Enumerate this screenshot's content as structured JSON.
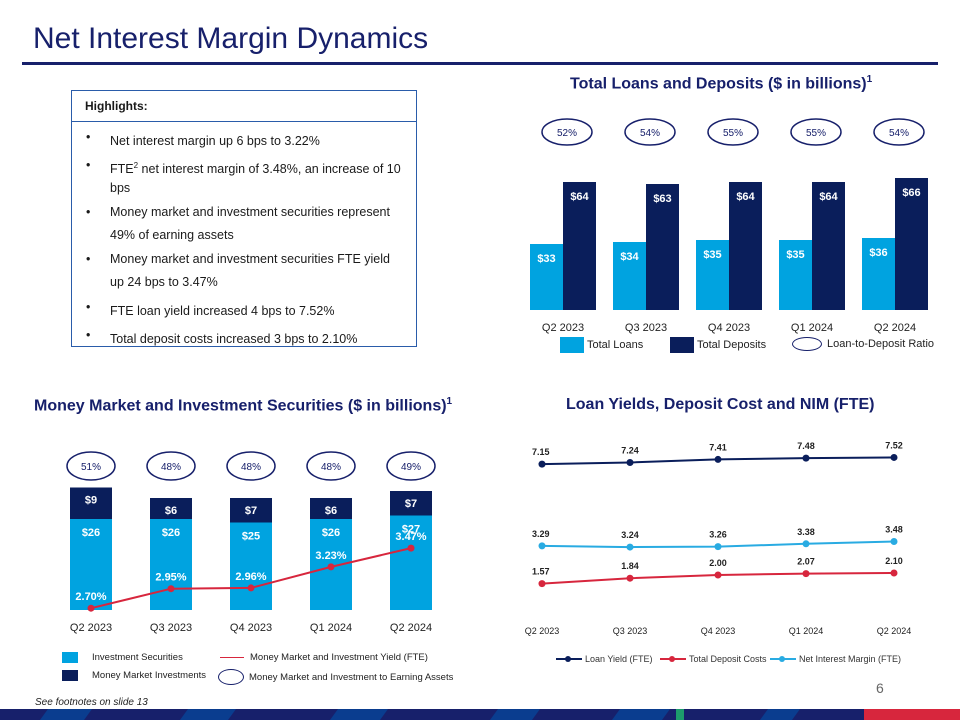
{
  "page": {
    "title": "Net Interest Margin Dynamics",
    "page_number": "6",
    "footnote": "See footnotes on slide 13",
    "colors": {
      "navy": "#17206b",
      "light_blue": "#00a3e0",
      "dark_blue": "#0a1e5b",
      "red": "#d7263d",
      "cyan": "#29abe2"
    }
  },
  "highlights": {
    "heading": "Highlights:",
    "items": [
      {
        "pre": "Net interest margin up 6 bps to 3.22%",
        "sup": "",
        "post": ""
      },
      {
        "pre": "FTE",
        "sup": "2",
        "post": " net interest margin of 3.48%, an increase of 10 bps"
      },
      {
        "pre": "Money market and investment securities represent 49% of earning assets",
        "sup": "",
        "post": ""
      },
      {
        "pre": "Money market and investment securities FTE yield up 24 bps to 3.47%",
        "sup": "",
        "post": ""
      },
      {
        "pre": "FTE loan yield increased 4 bps to 7.52%",
        "sup": "",
        "post": ""
      },
      {
        "pre": "Total deposit costs increased 3 bps to 2.10%",
        "sup": "",
        "post": ""
      }
    ]
  },
  "chart_data": [
    {
      "id": "loans_deposits",
      "type": "bar",
      "title": "Total Loans and Deposits ($ in billions)",
      "title_sup": "1",
      "categories": [
        "Q2 2023",
        "Q3 2023",
        "Q4 2023",
        "Q1 2024",
        "Q2 2024"
      ],
      "series": [
        {
          "name": "Total Loans",
          "values": [
            33,
            34,
            35,
            35,
            36
          ],
          "labels": [
            "$33",
            "$34",
            "$35",
            "$35",
            "$36"
          ],
          "color": "#00a3e0"
        },
        {
          "name": "Total Deposits",
          "values": [
            64,
            63,
            64,
            64,
            66
          ],
          "labels": [
            "$64",
            "$63",
            "$64",
            "$64",
            "$66"
          ],
          "color": "#0a1e5b"
        }
      ],
      "ratio": {
        "name": "Loan-to-Deposit Ratio",
        "labels": [
          "52%",
          "54%",
          "55%",
          "55%",
          "54%"
        ]
      },
      "ylim": [
        0,
        70
      ]
    },
    {
      "id": "money_market",
      "type": "bar",
      "stacked": true,
      "title": "Money Market and Investment Securities ($ in billions)",
      "title_sup": "1",
      "categories": [
        "Q2 2023",
        "Q3 2023",
        "Q4 2023",
        "Q1 2024",
        "Q2 2024"
      ],
      "series": [
        {
          "name": "Investment Securities",
          "values": [
            26,
            26,
            25,
            26,
            27
          ],
          "labels": [
            "$26",
            "$26",
            "$25",
            "$26",
            "$27"
          ],
          "color": "#00a3e0"
        },
        {
          "name": "Money Market Investments",
          "values": [
            9,
            6,
            7,
            6,
            7
          ],
          "labels": [
            "$9",
            "$6",
            "$7",
            "$6",
            "$7"
          ],
          "color": "#0a1e5b"
        }
      ],
      "line": {
        "name": "Money Market and Investment Yield (FTE)",
        "values": [
          2.7,
          2.95,
          2.96,
          3.23,
          3.47
        ],
        "labels": [
          "2.70%",
          "2.95%",
          "2.96%",
          "3.23%",
          "3.47%"
        ],
        "color": "#d7263d"
      },
      "ratio": {
        "name": "Money Market and Investment to Earning Assets",
        "labels": [
          "51%",
          "48%",
          "48%",
          "48%",
          "49%"
        ]
      },
      "ylim": [
        0,
        36
      ]
    },
    {
      "id": "yields",
      "type": "line",
      "title": "Loan Yields, Deposit Cost and NIM (FTE)",
      "categories": [
        "Q2 2023",
        "Q3 2023",
        "Q4 2023",
        "Q1 2024",
        "Q2 2024"
      ],
      "series": [
        {
          "name": "Loan Yield (FTE)",
          "values": [
            7.15,
            7.24,
            7.41,
            7.48,
            7.52
          ],
          "labels": [
            "7.15",
            "7.24",
            "7.41",
            "7.48",
            "7.52"
          ],
          "color": "#0a1e5b"
        },
        {
          "name": "Total Deposit Costs",
          "values": [
            1.57,
            1.84,
            2.0,
            2.07,
            2.1
          ],
          "labels": [
            "1.57",
            "1.84",
            "2.00",
            "2.07",
            "2.10"
          ],
          "color": "#d7263d"
        },
        {
          "name": "Net Interest Margin (FTE)",
          "values": [
            3.29,
            3.24,
            3.26,
            3.38,
            3.48
          ],
          "labels": [
            "3.29",
            "3.24",
            "3.26",
            "3.38",
            "3.48"
          ],
          "color": "#29abe2"
        }
      ]
    }
  ]
}
